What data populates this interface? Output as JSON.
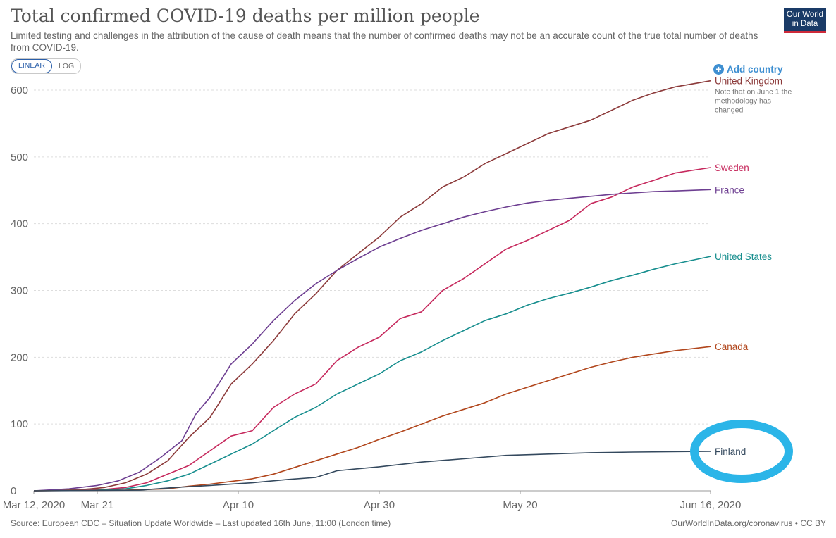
{
  "header": {
    "title": "Total confirmed COVID-19 deaths per million people",
    "subtitle": "Limited testing and challenges in the attribution of the cause of death means that the number of confirmed deaths may not be an accurate count of the true total number of deaths from COVID-19.",
    "logo_line1": "Our World",
    "logo_line2": "in Data"
  },
  "controls": {
    "linear_label": "LINEAR",
    "log_label": "LOG",
    "active_scale": "LINEAR",
    "add_country_label": "Add country",
    "add_icon": "plus-circle-icon"
  },
  "footer": {
    "source": "Source: European CDC – Situation Update Worldwide – Last updated 16th June, 11:00 (London time)",
    "credit": "OurWorldInData.org/coronavirus • CC BY"
  },
  "chart_data": {
    "type": "line",
    "title": "Total confirmed COVID-19 deaths per million people",
    "xlabel": "",
    "ylabel": "",
    "x_range": [
      "2020-03-12",
      "2020-06-16"
    ],
    "ylim": [
      0,
      600
    ],
    "y_ticks": [
      0,
      100,
      200,
      300,
      400,
      500,
      600
    ],
    "x_ticks": [
      {
        "date": "2020-03-12",
        "label": "Mar 12, 2020"
      },
      {
        "date": "2020-03-21",
        "label": "Mar 21"
      },
      {
        "date": "2020-04-10",
        "label": "Apr 10"
      },
      {
        "date": "2020-04-30",
        "label": "Apr 30"
      },
      {
        "date": "2020-05-20",
        "label": "May 20"
      },
      {
        "date": "2020-06-16",
        "label": "Jun 16, 2020"
      }
    ],
    "grid": "horizontal dashed",
    "annotation": {
      "highlight": "Finland",
      "highlight_color": "#2bb5e8",
      "note_series": "United Kingdom",
      "note_lines": [
        "Note that on June 1 the",
        "methodology has",
        "changed"
      ]
    },
    "series": [
      {
        "name": "United Kingdom",
        "color": "#8c3a3a",
        "points": [
          [
            "2020-03-12",
            0
          ],
          [
            "2020-03-19",
            2
          ],
          [
            "2020-03-22",
            5
          ],
          [
            "2020-03-25",
            12
          ],
          [
            "2020-03-28",
            25
          ],
          [
            "2020-03-31",
            45
          ],
          [
            "2020-04-03",
            80
          ],
          [
            "2020-04-06",
            110
          ],
          [
            "2020-04-09",
            160
          ],
          [
            "2020-04-12",
            190
          ],
          [
            "2020-04-15",
            225
          ],
          [
            "2020-04-18",
            265
          ],
          [
            "2020-04-21",
            295
          ],
          [
            "2020-04-24",
            330
          ],
          [
            "2020-04-27",
            355
          ],
          [
            "2020-04-30",
            380
          ],
          [
            "2020-05-03",
            410
          ],
          [
            "2020-05-06",
            430
          ],
          [
            "2020-05-09",
            455
          ],
          [
            "2020-05-12",
            470
          ],
          [
            "2020-05-15",
            490
          ],
          [
            "2020-05-18",
            505
          ],
          [
            "2020-05-21",
            520
          ],
          [
            "2020-05-24",
            535
          ],
          [
            "2020-05-27",
            545
          ],
          [
            "2020-05-30",
            555
          ],
          [
            "2020-06-02",
            570
          ],
          [
            "2020-06-05",
            585
          ],
          [
            "2020-06-08",
            596
          ],
          [
            "2020-06-11",
            605
          ],
          [
            "2020-06-16",
            614
          ]
        ]
      },
      {
        "name": "Sweden",
        "color": "#c6295d",
        "points": [
          [
            "2020-03-12",
            0
          ],
          [
            "2020-03-19",
            1
          ],
          [
            "2020-03-22",
            2
          ],
          [
            "2020-03-25",
            5
          ],
          [
            "2020-03-28",
            12
          ],
          [
            "2020-03-31",
            25
          ],
          [
            "2020-04-03",
            38
          ],
          [
            "2020-04-06",
            60
          ],
          [
            "2020-04-09",
            82
          ],
          [
            "2020-04-12",
            90
          ],
          [
            "2020-04-15",
            125
          ],
          [
            "2020-04-18",
            145
          ],
          [
            "2020-04-21",
            160
          ],
          [
            "2020-04-24",
            195
          ],
          [
            "2020-04-27",
            215
          ],
          [
            "2020-04-30",
            230
          ],
          [
            "2020-05-03",
            258
          ],
          [
            "2020-05-06",
            268
          ],
          [
            "2020-05-09",
            300
          ],
          [
            "2020-05-12",
            318
          ],
          [
            "2020-05-15",
            340
          ],
          [
            "2020-05-18",
            362
          ],
          [
            "2020-05-21",
            375
          ],
          [
            "2020-05-24",
            390
          ],
          [
            "2020-05-27",
            405
          ],
          [
            "2020-05-30",
            430
          ],
          [
            "2020-06-02",
            440
          ],
          [
            "2020-06-05",
            455
          ],
          [
            "2020-06-08",
            465
          ],
          [
            "2020-06-11",
            476
          ],
          [
            "2020-06-16",
            484
          ]
        ]
      },
      {
        "name": "France",
        "color": "#6d3e91",
        "points": [
          [
            "2020-03-12",
            0
          ],
          [
            "2020-03-17",
            3
          ],
          [
            "2020-03-21",
            8
          ],
          [
            "2020-03-24",
            15
          ],
          [
            "2020-03-27",
            28
          ],
          [
            "2020-03-30",
            50
          ],
          [
            "2020-04-02",
            75
          ],
          [
            "2020-04-04",
            115
          ],
          [
            "2020-04-06",
            140
          ],
          [
            "2020-04-09",
            190
          ],
          [
            "2020-04-12",
            220
          ],
          [
            "2020-04-15",
            255
          ],
          [
            "2020-04-18",
            285
          ],
          [
            "2020-04-21",
            310
          ],
          [
            "2020-04-24",
            330
          ],
          [
            "2020-04-27",
            348
          ],
          [
            "2020-04-30",
            365
          ],
          [
            "2020-05-03",
            378
          ],
          [
            "2020-05-06",
            390
          ],
          [
            "2020-05-09",
            400
          ],
          [
            "2020-05-12",
            410
          ],
          [
            "2020-05-15",
            418
          ],
          [
            "2020-05-18",
            425
          ],
          [
            "2020-05-21",
            431
          ],
          [
            "2020-05-24",
            435
          ],
          [
            "2020-05-27",
            438
          ],
          [
            "2020-05-30",
            441
          ],
          [
            "2020-06-02",
            444
          ],
          [
            "2020-06-05",
            446
          ],
          [
            "2020-06-08",
            448
          ],
          [
            "2020-06-11",
            449
          ],
          [
            "2020-06-16",
            451
          ]
        ]
      },
      {
        "name": "United States",
        "color": "#178e8e",
        "points": [
          [
            "2020-03-12",
            0
          ],
          [
            "2020-03-21",
            1
          ],
          [
            "2020-03-25",
            3
          ],
          [
            "2020-03-28",
            8
          ],
          [
            "2020-03-31",
            15
          ],
          [
            "2020-04-03",
            25
          ],
          [
            "2020-04-06",
            40
          ],
          [
            "2020-04-09",
            55
          ],
          [
            "2020-04-12",
            70
          ],
          [
            "2020-04-15",
            90
          ],
          [
            "2020-04-18",
            110
          ],
          [
            "2020-04-21",
            125
          ],
          [
            "2020-04-24",
            145
          ],
          [
            "2020-04-27",
            160
          ],
          [
            "2020-04-30",
            175
          ],
          [
            "2020-05-03",
            195
          ],
          [
            "2020-05-06",
            208
          ],
          [
            "2020-05-09",
            225
          ],
          [
            "2020-05-12",
            240
          ],
          [
            "2020-05-15",
            255
          ],
          [
            "2020-05-18",
            265
          ],
          [
            "2020-05-21",
            278
          ],
          [
            "2020-05-24",
            288
          ],
          [
            "2020-05-27",
            296
          ],
          [
            "2020-05-30",
            305
          ],
          [
            "2020-06-02",
            315
          ],
          [
            "2020-06-05",
            323
          ],
          [
            "2020-06-08",
            332
          ],
          [
            "2020-06-11",
            340
          ],
          [
            "2020-06-16",
            351
          ]
        ]
      },
      {
        "name": "Canada",
        "color": "#b1461c",
        "points": [
          [
            "2020-03-12",
            0
          ],
          [
            "2020-03-25",
            1
          ],
          [
            "2020-03-31",
            3
          ],
          [
            "2020-04-03",
            7
          ],
          [
            "2020-04-06",
            10
          ],
          [
            "2020-04-09",
            14
          ],
          [
            "2020-04-12",
            18
          ],
          [
            "2020-04-15",
            25
          ],
          [
            "2020-04-18",
            35
          ],
          [
            "2020-04-21",
            45
          ],
          [
            "2020-04-24",
            55
          ],
          [
            "2020-04-27",
            65
          ],
          [
            "2020-04-30",
            77
          ],
          [
            "2020-05-03",
            88
          ],
          [
            "2020-05-06",
            100
          ],
          [
            "2020-05-09",
            112
          ],
          [
            "2020-05-12",
            122
          ],
          [
            "2020-05-15",
            132
          ],
          [
            "2020-05-18",
            145
          ],
          [
            "2020-05-21",
            155
          ],
          [
            "2020-05-24",
            165
          ],
          [
            "2020-05-27",
            175
          ],
          [
            "2020-05-30",
            185
          ],
          [
            "2020-06-02",
            193
          ],
          [
            "2020-06-05",
            200
          ],
          [
            "2020-06-08",
            205
          ],
          [
            "2020-06-11",
            210
          ],
          [
            "2020-06-16",
            216
          ]
        ]
      },
      {
        "name": "Finland",
        "color": "#34495e",
        "points": [
          [
            "2020-03-12",
            0
          ],
          [
            "2020-03-27",
            1
          ],
          [
            "2020-04-01",
            5
          ],
          [
            "2020-04-06",
            8
          ],
          [
            "2020-04-12",
            12
          ],
          [
            "2020-04-17",
            17
          ],
          [
            "2020-04-21",
            20
          ],
          [
            "2020-04-24",
            30
          ],
          [
            "2020-04-30",
            36
          ],
          [
            "2020-05-06",
            43
          ],
          [
            "2020-05-12",
            48
          ],
          [
            "2020-05-18",
            53
          ],
          [
            "2020-05-24",
            55
          ],
          [
            "2020-05-30",
            57
          ],
          [
            "2020-06-05",
            58
          ],
          [
            "2020-06-16",
            59
          ]
        ]
      }
    ]
  }
}
